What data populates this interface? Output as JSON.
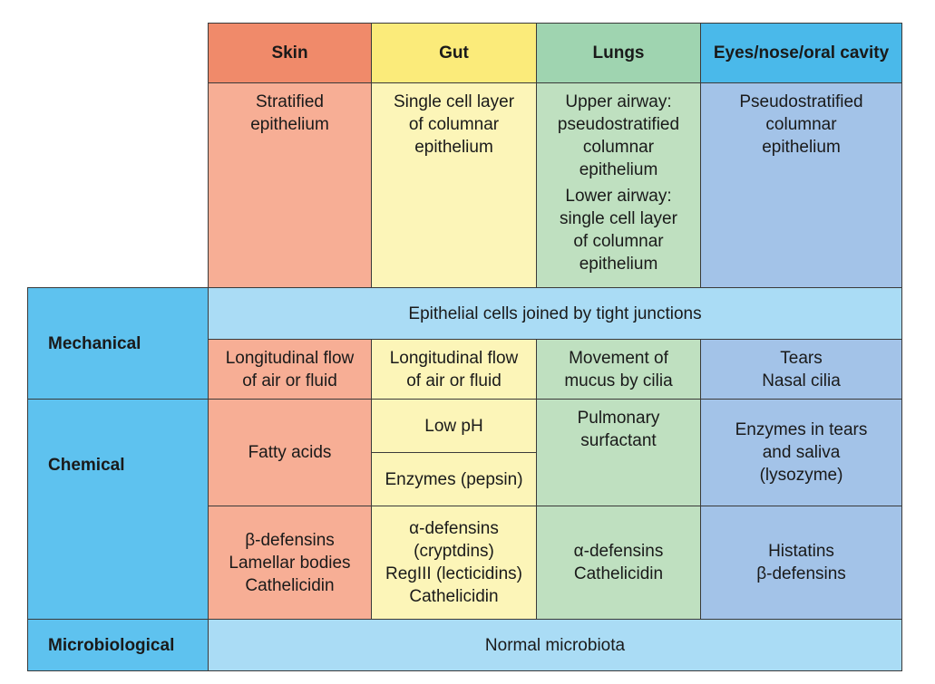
{
  "headers": [
    "Skin",
    "Gut",
    "Lungs",
    "Eyes/nose/oral cavity"
  ],
  "row_labels": {
    "mechanical": "Mechanical",
    "chemical": "Chemical",
    "microbiological": "Microbiological"
  },
  "epithelium": {
    "skin": [
      "Stratified",
      "epithelium"
    ],
    "gut": [
      "Single cell layer",
      "of columnar",
      "epithelium"
    ],
    "lungs_upper": [
      "Upper airway:",
      "pseudostratified",
      "columnar",
      "epithelium"
    ],
    "lungs_lower": [
      "Lower airway:",
      "single cell layer",
      "of columnar",
      "epithelium"
    ],
    "eyes": [
      "Pseudostratified",
      "columnar",
      "epithelium"
    ]
  },
  "mechanical": {
    "span": "Epithelial cells joined by tight junctions",
    "skin": [
      "Longitudinal flow",
      "of air or fluid"
    ],
    "gut": [
      "Longitudinal flow",
      "of air or fluid"
    ],
    "lungs": [
      "Movement of",
      "mucus by cilia"
    ],
    "eyes": [
      "Tears",
      "Nasal cilia"
    ]
  },
  "chemical": {
    "skin_1": "Fatty acids",
    "gut_1": "Low pH",
    "gut_2": "Enzymes (pepsin)",
    "lungs_1": [
      "Pulmonary",
      "surfactant"
    ],
    "eyes_1": [
      "Enzymes in tears",
      "and saliva",
      "(lysozyme)"
    ],
    "skin_2": [
      "β-defensins",
      "Lamellar bodies",
      "Cathelicidin"
    ],
    "gut_2b": [
      "α-defensins",
      "(cryptdins)",
      "RegIII (lecticidins)",
      "Cathelicidin"
    ],
    "lungs_2": [
      "α-defensins",
      "Cathelicidin"
    ],
    "eyes_2": [
      "Histatins",
      "β-defensins"
    ]
  },
  "microbiological": {
    "span": "Normal microbiota"
  },
  "colors": {
    "skin_header": "#f08a6a",
    "gut_header": "#fbeb7a",
    "lungs_header": "#9fd4b0",
    "eyes_header": "#4ab9ea",
    "skin": "#f7ae95",
    "gut": "#fcf5b8",
    "lungs": "#bfe0c0",
    "eyes": "#a3c3e8",
    "span_row": "#aadcf5",
    "row_header": "#5ec2ef"
  }
}
